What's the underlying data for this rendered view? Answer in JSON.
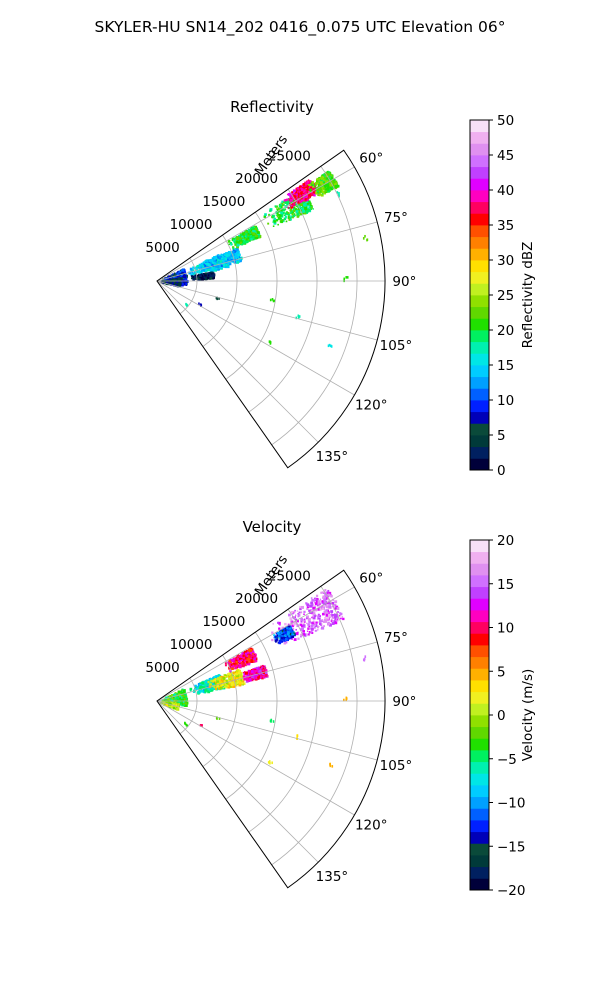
{
  "figure": {
    "title": "SKYLER-HU  SN14_202  0416_0.075 UTC Elevation 06°"
  },
  "chart_data": [
    {
      "type": "heatmap",
      "projection": "polar-sector",
      "title": "Reflectivity",
      "radial_label": "Meters",
      "r_ticks": [
        "5000",
        "10000",
        "15000",
        "20000",
        "25000"
      ],
      "r_tick_values": [
        5000,
        10000,
        15000,
        20000,
        25000
      ],
      "r_max": 28500,
      "theta_range_deg": [
        55,
        145
      ],
      "theta_ticks": [
        "60°",
        "75°",
        "90°",
        "105°",
        "120°",
        "135°"
      ],
      "theta_tick_values": [
        60,
        75,
        90,
        105,
        120,
        135
      ],
      "grid": true,
      "colorbar": {
        "label": "Reflectivity dBZ",
        "min": 0,
        "max": 50,
        "ticks": [
          "0",
          "5",
          "10",
          "15",
          "20",
          "25",
          "30",
          "35",
          "40",
          "45",
          "50"
        ],
        "tick_values": [
          0,
          5,
          10,
          15,
          20,
          25,
          30,
          35,
          40,
          45,
          50
        ],
        "colors": [
          "#00003a",
          "#002060",
          "#003a3a",
          "#0a4a3a",
          "#0000b8",
          "#0020ff",
          "#0060ff",
          "#00a0ff",
          "#00ccff",
          "#00e6e6",
          "#00f0b0",
          "#00f060",
          "#20e000",
          "#60d800",
          "#90e000",
          "#c0f020",
          "#f0f020",
          "#ffe000",
          "#ffb000",
          "#ff8000",
          "#ff5000",
          "#ff0000",
          "#ff0060",
          "#ff00c0",
          "#e000ff",
          "#c040ff",
          "#d070ff",
          "#e090f0",
          "#f0b0f0",
          "#f8e0f8"
        ]
      },
      "regions": [
        {
          "r": [
            400,
            3600
          ],
          "theta": [
            63,
            97
          ],
          "value": 8
        },
        {
          "r": [
            200,
            2800
          ],
          "theta": [
            80,
            100
          ],
          "value": 5
        },
        {
          "r": [
            4000,
            9000
          ],
          "theta": [
            66,
            78
          ],
          "value": 15
        },
        {
          "r": [
            4200,
            7000
          ],
          "theta": [
            80,
            86
          ],
          "value": 3
        },
        {
          "r": [
            5800,
            10800
          ],
          "theta": [
            67,
            76
          ],
          "value": 14
        },
        {
          "r": [
            10000,
            14000
          ],
          "theta": [
            60,
            66
          ],
          "value": 20
        },
        {
          "r": [
            15500,
            21500
          ],
          "theta": [
            57,
            65
          ],
          "value": 20
        },
        {
          "r": [
            18500,
            23000
          ],
          "theta": [
            56,
            61
          ],
          "value": 38
        },
        {
          "r": [
            22000,
            25500
          ],
          "theta": [
            57,
            62
          ],
          "value": 22
        }
      ],
      "scatter_points": [
        {
          "r": 4500,
          "theta": 128,
          "value": 18
        },
        {
          "r": 6000,
          "theta": 118,
          "value": 7
        },
        {
          "r": 7800,
          "theta": 105,
          "value": 5
        },
        {
          "r": 14500,
          "theta": 99,
          "value": 20
        },
        {
          "r": 18000,
          "theta": 104,
          "value": 18
        },
        {
          "r": 16000,
          "theta": 118,
          "value": 20
        },
        {
          "r": 23000,
          "theta": 110,
          "value": 16
        },
        {
          "r": 23500,
          "theta": 89,
          "value": 20
        },
        {
          "r": 26500,
          "theta": 78,
          "value": 22
        },
        {
          "r": 25000,
          "theta": 64,
          "value": 18
        }
      ]
    },
    {
      "type": "heatmap",
      "projection": "polar-sector",
      "title": "Velocity",
      "radial_label": "Meters",
      "r_ticks": [
        "5000",
        "10000",
        "15000",
        "20000",
        "25000"
      ],
      "r_tick_values": [
        5000,
        10000,
        15000,
        20000,
        25000
      ],
      "r_max": 28500,
      "theta_range_deg": [
        55,
        145
      ],
      "theta_ticks": [
        "60°",
        "75°",
        "90°",
        "105°",
        "120°",
        "135°"
      ],
      "theta_tick_values": [
        60,
        75,
        90,
        105,
        120,
        135
      ],
      "grid": true,
      "colorbar": {
        "label": "Velocity (m/s)",
        "min": -20,
        "max": 20,
        "ticks": [
          "−20",
          "−15",
          "−10",
          "−5",
          "0",
          "5",
          "10",
          "15",
          "20"
        ],
        "tick_values": [
          -20,
          -15,
          -10,
          -5,
          0,
          5,
          10,
          15,
          20
        ],
        "colors": [
          "#00003a",
          "#002060",
          "#003a3a",
          "#0a4a3a",
          "#0000b8",
          "#0020ff",
          "#0060ff",
          "#00a0ff",
          "#00ccff",
          "#00e6e6",
          "#00f0b0",
          "#00f060",
          "#20e000",
          "#60d800",
          "#90e000",
          "#c0f020",
          "#f0f020",
          "#ffe000",
          "#ffb000",
          "#ff8000",
          "#ff5000",
          "#ff0000",
          "#ff0060",
          "#ff00c0",
          "#e000ff",
          "#c040ff",
          "#d070ff",
          "#e090f0",
          "#f0b0f0",
          "#f8e0f8"
        ]
      },
      "regions": [
        {
          "r": [
            400,
            3600
          ],
          "theta": [
            63,
            97
          ],
          "value": -3
        },
        {
          "r": [
            300,
            2600
          ],
          "theta": [
            95,
            110
          ],
          "value": 0
        },
        {
          "r": [
            4200,
            8500
          ],
          "theta": [
            66,
            78
          ],
          "value": -7
        },
        {
          "r": [
            6500,
            11000
          ],
          "theta": [
            68,
            78
          ],
          "value": 2
        },
        {
          "r": [
            9500,
            13500
          ],
          "theta": [
            60,
            67
          ],
          "value": 10
        },
        {
          "r": [
            11000,
            14000
          ],
          "theta": [
            71,
            77
          ],
          "value": 11
        },
        {
          "r": [
            16000,
            25500
          ],
          "theta": [
            56,
            66
          ],
          "value": 15
        },
        {
          "r": [
            16500,
            19000
          ],
          "theta": [
            60,
            64
          ],
          "value": -12
        }
      ],
      "scatter_points": [
        {
          "r": 4500,
          "theta": 128,
          "value": -4
        },
        {
          "r": 6000,
          "theta": 118,
          "value": 10
        },
        {
          "r": 7800,
          "theta": 105,
          "value": -2
        },
        {
          "r": 14500,
          "theta": 99,
          "value": -5
        },
        {
          "r": 18000,
          "theta": 104,
          "value": 3
        },
        {
          "r": 16000,
          "theta": 118,
          "value": 2
        },
        {
          "r": 23000,
          "theta": 110,
          "value": 5
        },
        {
          "r": 23500,
          "theta": 89,
          "value": 4
        },
        {
          "r": 26500,
          "theta": 78,
          "value": 15
        },
        {
          "r": 24500,
          "theta": 64,
          "value": 14
        }
      ]
    }
  ]
}
